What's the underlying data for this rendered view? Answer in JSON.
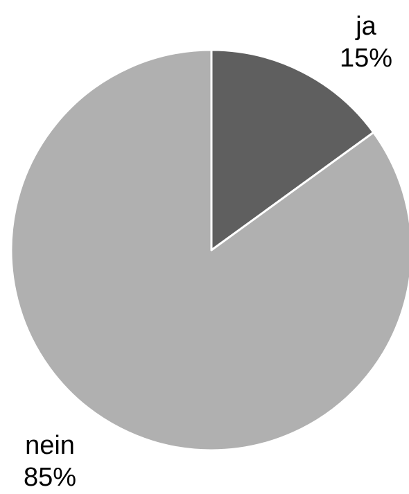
{
  "chart_data": {
    "type": "pie",
    "start_angle_deg": 0,
    "direction": "clockwise",
    "slices": [
      {
        "label": "ja",
        "value": 15,
        "value_label": "15%",
        "color": "#5f5f5f"
      },
      {
        "label": "nein",
        "value": 85,
        "value_label": "85%",
        "color": "#b0b0b0"
      }
    ],
    "edge_color": "#ffffff"
  }
}
